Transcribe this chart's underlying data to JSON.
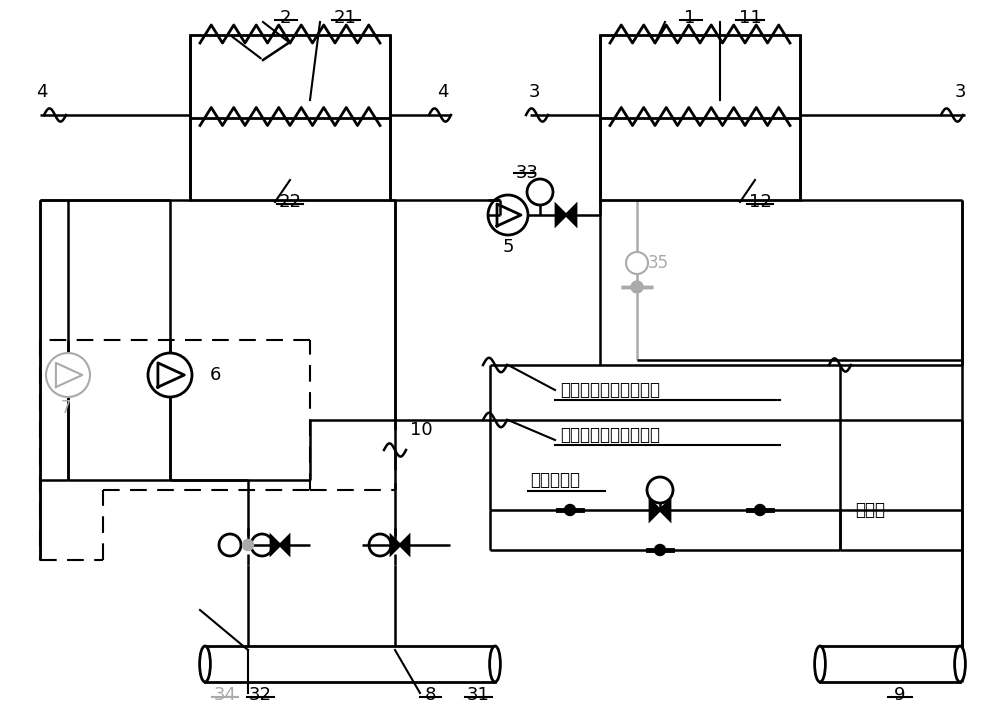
{
  "bg": "#ffffff",
  "lc": "#000000",
  "gc": "#aaaaaa",
  "lw": 1.8,
  "txt1": "接空调末端冷水回水管",
  "txt2": "接空调末端冷水供水管",
  "txt3": "压差旁通阀",
  "txt4": "旁通管"
}
